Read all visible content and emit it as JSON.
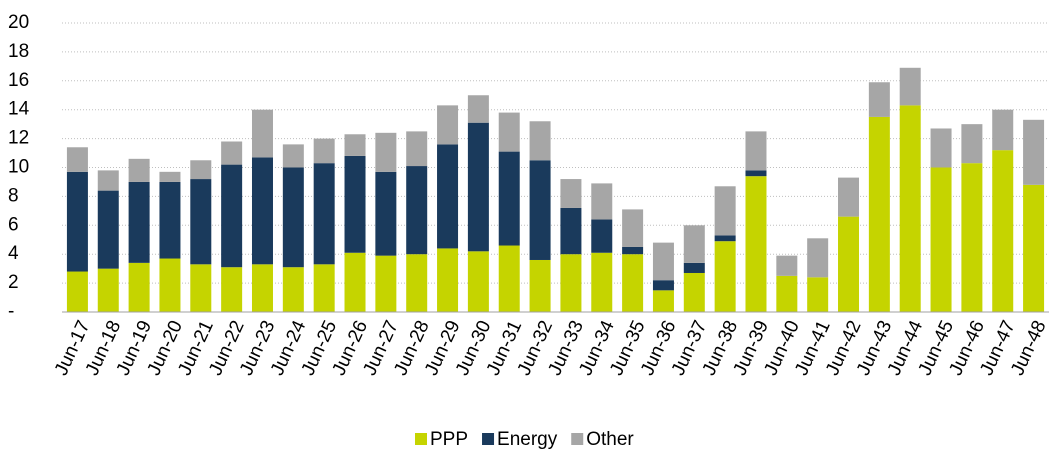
{
  "chart_data": {
    "type": "stacked_bar",
    "categories": [
      "Jun-17",
      "Jun-18",
      "Jun-19",
      "Jun-20",
      "Jun-21",
      "Jun-22",
      "Jun-23",
      "Jun-24",
      "Jun-25",
      "Jun-26",
      "Jun-27",
      "Jun-28",
      "Jun-29",
      "Jun-30",
      "Jun-31",
      "Jun-32",
      "Jun-33",
      "Jun-34",
      "Jun-35",
      "Jun-36",
      "Jun-37",
      "Jun-38",
      "Jun-39",
      "Jun-40",
      "Jun-41",
      "Jun-42",
      "Jun-43",
      "Jun-44",
      "Jun-45",
      "Jun-46",
      "Jun-47",
      "Jun-48"
    ],
    "series": [
      {
        "name": "PPP",
        "color": "#c5d400",
        "values": [
          2.8,
          3.0,
          3.4,
          3.7,
          3.3,
          3.1,
          3.3,
          3.1,
          3.3,
          4.1,
          3.9,
          4.0,
          4.4,
          4.2,
          4.6,
          3.6,
          4.0,
          4.1,
          4.0,
          1.5,
          2.7,
          4.9,
          9.4,
          2.5,
          2.4,
          6.6,
          13.5,
          14.3,
          10.0,
          10.3,
          11.2,
          8.8
        ]
      },
      {
        "name": "Energy",
        "color": "#1a3a5c",
        "values": [
          6.9,
          5.4,
          5.6,
          5.3,
          5.9,
          7.1,
          7.4,
          6.9,
          7.0,
          6.7,
          5.8,
          6.1,
          7.2,
          8.9,
          6.5,
          6.9,
          3.2,
          2.3,
          0.5,
          0.7,
          0.7,
          0.4,
          0.4,
          0,
          0,
          0,
          0,
          0,
          0,
          0,
          0,
          0
        ]
      },
      {
        "name": "Other",
        "color": "#a6a6a6",
        "values": [
          1.7,
          1.4,
          1.6,
          0.7,
          1.3,
          1.6,
          3.3,
          1.6,
          1.7,
          1.5,
          2.7,
          2.4,
          2.7,
          1.9,
          2.7,
          2.7,
          2.0,
          2.5,
          2.6,
          2.6,
          2.6,
          3.4,
          2.7,
          1.4,
          2.7,
          2.7,
          2.4,
          2.6,
          2.7,
          2.7,
          2.8,
          4.5
        ]
      }
    ],
    "ylim": [
      0,
      20
    ],
    "yticks": [
      {
        "value": 0,
        "label": "-"
      },
      2,
      4,
      6,
      8,
      10,
      12,
      14,
      16,
      18,
      20
    ],
    "grid": true,
    "legend": "bottom"
  }
}
